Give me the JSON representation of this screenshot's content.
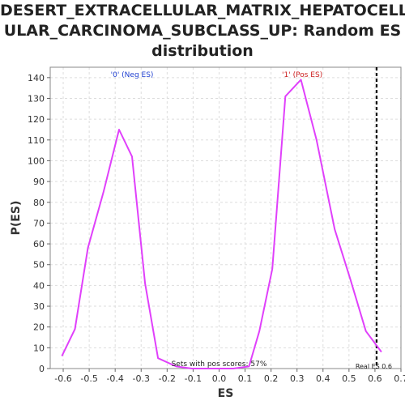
{
  "chart_data": {
    "type": "line",
    "title": "DESERT_EXTRACELLULAR_MATRIX_HEPATOCELL\nULAR_CARCINOMA_SUBCLASS_UP: Random ES\ndistribution",
    "xlabel": "ES",
    "ylabel": "P(ES)",
    "xlim": [
      -0.65,
      0.7
    ],
    "ylim": [
      0,
      145
    ],
    "x_ticks": [
      "-0.6",
      "-0.5",
      "-0.4",
      "-0.3",
      "-0.2",
      "-0.1",
      "0.0",
      "0.1",
      "0.2",
      "0.3",
      "0.4",
      "0.5",
      "0.6",
      "0.7"
    ],
    "y_ticks": [
      "0",
      "10",
      "20",
      "30",
      "40",
      "50",
      "60",
      "70",
      "80",
      "90",
      "100",
      "110",
      "120",
      "130",
      "140"
    ],
    "grid": true,
    "series": [
      {
        "color": "#e040fb",
        "x": [
          -0.605,
          -0.555,
          -0.505,
          -0.445,
          -0.385,
          -0.335,
          -0.285,
          -0.235,
          -0.165,
          -0.105,
          -0.055,
          0.005,
          0.055,
          0.115,
          0.155,
          0.205,
          0.255,
          0.315,
          0.375,
          0.445,
          0.505,
          0.565,
          0.625
        ],
        "y": [
          6,
          19,
          58,
          85,
          115,
          102,
          41,
          5,
          1,
          0,
          0,
          0,
          0,
          1,
          18,
          48,
          131,
          139,
          110,
          67,
          43,
          18,
          8
        ]
      }
    ],
    "annotations": {
      "neg_label": "'0' (Neg ES)",
      "pos_label": "'1' (Pos ES)",
      "pos_scores": "Sets with pos scores: 57%",
      "real_es": "Real ES 0.6"
    },
    "real_es_value": 0.6,
    "colors": {
      "line": "#e040fb",
      "neg_label": "#1f3fd0",
      "pos_label": "#cc2222",
      "grid": "#dddddd",
      "marker": "#000000"
    }
  }
}
